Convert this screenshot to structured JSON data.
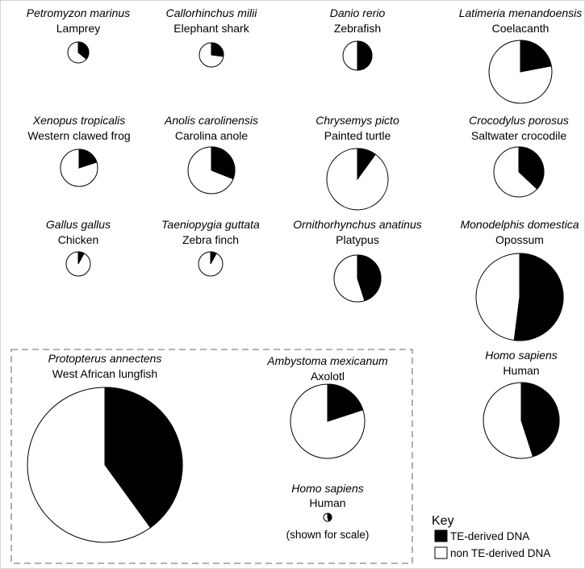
{
  "chart_data": {
    "type": "pie",
    "title": "",
    "description_units": "Pie area proportional to genome size; black slice = TE-derived fraction",
    "species": [
      {
        "id": "lamprey",
        "latin": "Petromyzon marinus",
        "common": "Lamprey",
        "te_fraction": 0.36
      },
      {
        "id": "elephant-shark",
        "latin": "Callorhinchus milii",
        "common": "Elephant shark",
        "te_fraction": 0.27
      },
      {
        "id": "zebrafish",
        "latin": "Danio rerio",
        "common": "Zebrafish",
        "te_fraction": 0.5
      },
      {
        "id": "coelacanth",
        "latin": "Latimeria menandoensis",
        "common": "Coelacanth",
        "te_fraction": 0.22
      },
      {
        "id": "western-clawed-frog",
        "latin": "Xenopus tropicalis",
        "common": "Western clawed frog",
        "te_fraction": 0.2
      },
      {
        "id": "carolina-anole",
        "latin": "Anolis carolinensis",
        "common": "Carolina anole",
        "te_fraction": 0.31
      },
      {
        "id": "painted-turtle",
        "latin": "Chrysemys picto",
        "common": "Painted turtle",
        "te_fraction": 0.1
      },
      {
        "id": "saltwater-crocodile",
        "latin": "Crocodylus porosus",
        "common": "Saltwater crocodile",
        "te_fraction": 0.37
      },
      {
        "id": "chicken",
        "latin": "Gallus gallus",
        "common": "Chicken",
        "te_fraction": 0.08
      },
      {
        "id": "zebra-finch",
        "latin": "Taeniopygia guttata",
        "common": "Zebra finch",
        "te_fraction": 0.08
      },
      {
        "id": "platypus",
        "latin": "Ornithorhynchus anatinus",
        "common": "Platypus",
        "te_fraction": 0.45
      },
      {
        "id": "opossum",
        "latin": "Monodelphis domestica",
        "common": "Opossum",
        "te_fraction": 0.52
      },
      {
        "id": "human",
        "latin": "Homo sapiens",
        "common": "Human",
        "te_fraction": 0.45
      },
      {
        "id": "west-african-lungfish",
        "latin": "Protopterus annectens",
        "common": "West African lungfish",
        "te_fraction": 0.4
      },
      {
        "id": "axolotl",
        "latin": "Ambystoma mexicanum",
        "common": "Axolotl",
        "te_fraction": 0.2
      },
      {
        "id": "human-scale",
        "latin": "Homo sapiens",
        "common": "Human",
        "te_fraction": 0.45,
        "note": "(shown for scale)"
      }
    ],
    "legend": {
      "title": "Key",
      "placement": "bottom-right",
      "entries": [
        {
          "label": "TE-derived DNA",
          "color": "#000000"
        },
        {
          "label": "non TE-derived DNA",
          "color": "#ffffff"
        }
      ]
    }
  },
  "colors": {
    "te": "#000000",
    "non_te": "#ffffff",
    "stroke": "#000000",
    "dashed_box": "#9a9a9a"
  }
}
